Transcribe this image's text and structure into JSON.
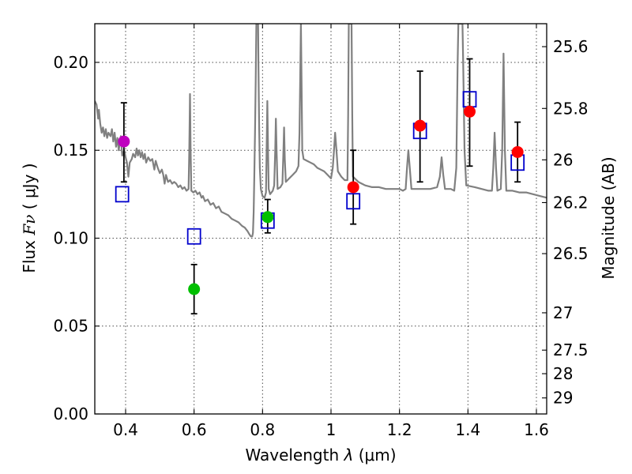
{
  "chart_data": {
    "type": "scatter",
    "xlabel": "Wavelength",
    "xlabel_symbol": "λ",
    "xlabel_unit": "(μm)",
    "ylabel": "Flux",
    "ylabel_symbol": "Fν",
    "ylabel_unit": "( μJy )",
    "y2label": "Magnitude (AB)",
    "xlim": [
      0.31,
      1.63
    ],
    "ylim": [
      0.0,
      0.222
    ],
    "grid": true,
    "x_ticks": [
      {
        "value": 0.4,
        "label": "0.4"
      },
      {
        "value": 0.6,
        "label": "0.6"
      },
      {
        "value": 0.8,
        "label": "0.8"
      },
      {
        "value": 1.0,
        "label": "1"
      },
      {
        "value": 1.2,
        "label": "1.2"
      },
      {
        "value": 1.4,
        "label": "1.4"
      },
      {
        "value": 1.6,
        "label": "1.6"
      }
    ],
    "y_ticks": [
      {
        "value": 0.0,
        "label": "0.00"
      },
      {
        "value": 0.05,
        "label": "0.05"
      },
      {
        "value": 0.1,
        "label": "0.10"
      },
      {
        "value": 0.15,
        "label": "0.15"
      },
      {
        "value": 0.2,
        "label": "0.20"
      }
    ],
    "y2_ticks": [
      {
        "mag": 25.6,
        "label": "25.6"
      },
      {
        "mag": 25.8,
        "label": "25.8"
      },
      {
        "mag": 26.0,
        "label": "26"
      },
      {
        "mag": 26.2,
        "label": "26.2"
      },
      {
        "mag": 26.5,
        "label": "26.5"
      },
      {
        "mag": 27.0,
        "label": "27"
      },
      {
        "mag": 27.5,
        "label": "27.5"
      },
      {
        "mag": 28.0,
        "label": "28"
      },
      {
        "mag": 29.0,
        "label": "29"
      }
    ],
    "observed_points": [
      {
        "x": 0.395,
        "y": 0.155,
        "err_low": 0.132,
        "err_high": 0.177,
        "color": "#bf00bf"
      },
      {
        "x": 0.6,
        "y": 0.071,
        "err_low": 0.057,
        "err_high": 0.085,
        "color": "#00bf00"
      },
      {
        "x": 0.815,
        "y": 0.112,
        "err_low": 0.103,
        "err_high": 0.122,
        "color": "#00bf00"
      },
      {
        "x": 1.065,
        "y": 0.129,
        "err_low": 0.108,
        "err_high": 0.15,
        "color": "#ff0000"
      },
      {
        "x": 1.26,
        "y": 0.164,
        "err_low": 0.132,
        "err_high": 0.195,
        "color": "#ff0000"
      },
      {
        "x": 1.405,
        "y": 0.172,
        "err_low": 0.141,
        "err_high": 0.202,
        "color": "#ff0000"
      },
      {
        "x": 1.545,
        "y": 0.149,
        "err_low": 0.132,
        "err_high": 0.166,
        "color": "#ff0000"
      }
    ],
    "model_photometry": [
      {
        "x": 0.39,
        "y": 0.125
      },
      {
        "x": 0.6,
        "y": 0.101
      },
      {
        "x": 0.815,
        "y": 0.11
      },
      {
        "x": 1.065,
        "y": 0.121
      },
      {
        "x": 1.26,
        "y": 0.161
      },
      {
        "x": 1.405,
        "y": 0.179
      },
      {
        "x": 1.545,
        "y": 0.143
      }
    ],
    "model_spectrum": {
      "color": "#808080",
      "points": [
        [
          0.31,
          0.178
        ],
        [
          0.315,
          0.176
        ],
        [
          0.32,
          0.168
        ],
        [
          0.322,
          0.173
        ],
        [
          0.326,
          0.165
        ],
        [
          0.33,
          0.16
        ],
        [
          0.334,
          0.163
        ],
        [
          0.338,
          0.158
        ],
        [
          0.342,
          0.162
        ],
        [
          0.346,
          0.157
        ],
        [
          0.35,
          0.16
        ],
        [
          0.356,
          0.158
        ],
        [
          0.36,
          0.162
        ],
        [
          0.364,
          0.155
        ],
        [
          0.368,
          0.16
        ],
        [
          0.372,
          0.152
        ],
        [
          0.376,
          0.157
        ],
        [
          0.38,
          0.15
        ],
        [
          0.386,
          0.158
        ],
        [
          0.39,
          0.147
        ],
        [
          0.396,
          0.15
        ],
        [
          0.4,
          0.146
        ],
        [
          0.404,
          0.143
        ],
        [
          0.408,
          0.135
        ],
        [
          0.412,
          0.143
        ],
        [
          0.418,
          0.145
        ],
        [
          0.422,
          0.148
        ],
        [
          0.428,
          0.146
        ],
        [
          0.432,
          0.151
        ],
        [
          0.436,
          0.147
        ],
        [
          0.44,
          0.15
        ],
        [
          0.444,
          0.146
        ],
        [
          0.448,
          0.149
        ],
        [
          0.452,
          0.145
        ],
        [
          0.456,
          0.148
        ],
        [
          0.46,
          0.143
        ],
        [
          0.466,
          0.146
        ],
        [
          0.472,
          0.144
        ],
        [
          0.478,
          0.145
        ],
        [
          0.484,
          0.139
        ],
        [
          0.488,
          0.144
        ],
        [
          0.494,
          0.14
        ],
        [
          0.5,
          0.137
        ],
        [
          0.506,
          0.139
        ],
        [
          0.51,
          0.136
        ],
        [
          0.514,
          0.131
        ],
        [
          0.518,
          0.136
        ],
        [
          0.524,
          0.132
        ],
        [
          0.53,
          0.133
        ],
        [
          0.536,
          0.131
        ],
        [
          0.542,
          0.132
        ],
        [
          0.548,
          0.131
        ],
        [
          0.554,
          0.129
        ],
        [
          0.56,
          0.13
        ],
        [
          0.566,
          0.128
        ],
        [
          0.572,
          0.129
        ],
        [
          0.578,
          0.127
        ],
        [
          0.584,
          0.128
        ],
        [
          0.586,
          0.15
        ],
        [
          0.588,
          0.182
        ],
        [
          0.59,
          0.15
        ],
        [
          0.592,
          0.127
        ],
        [
          0.598,
          0.126
        ],
        [
          0.604,
          0.127
        ],
        [
          0.61,
          0.125
        ],
        [
          0.616,
          0.126
        ],
        [
          0.622,
          0.123
        ],
        [
          0.626,
          0.124
        ],
        [
          0.632,
          0.121
        ],
        [
          0.64,
          0.122
        ],
        [
          0.648,
          0.119
        ],
        [
          0.656,
          0.12
        ],
        [
          0.664,
          0.117
        ],
        [
          0.672,
          0.118
        ],
        [
          0.68,
          0.115
        ],
        [
          0.69,
          0.114
        ],
        [
          0.7,
          0.113
        ],
        [
          0.71,
          0.111
        ],
        [
          0.72,
          0.11
        ],
        [
          0.73,
          0.109
        ],
        [
          0.74,
          0.107
        ],
        [
          0.748,
          0.106
        ],
        [
          0.756,
          0.104
        ],
        [
          0.762,
          0.102
        ],
        [
          0.766,
          0.101
        ],
        [
          0.77,
          0.101
        ],
        [
          0.772,
          0.103
        ],
        [
          0.774,
          0.115
        ],
        [
          0.776,
          0.135
        ],
        [
          0.778,
          0.16
        ],
        [
          0.78,
          0.19
        ],
        [
          0.782,
          0.222
        ],
        [
          0.787,
          0.222
        ],
        [
          0.788,
          0.2
        ],
        [
          0.79,
          0.165
        ],
        [
          0.792,
          0.14
        ],
        [
          0.795,
          0.128
        ],
        [
          0.8,
          0.124
        ],
        [
          0.806,
          0.123
        ],
        [
          0.81,
          0.126
        ],
        [
          0.812,
          0.15
        ],
        [
          0.814,
          0.178
        ],
        [
          0.816,
          0.15
        ],
        [
          0.818,
          0.128
        ],
        [
          0.822,
          0.125
        ],
        [
          0.83,
          0.127
        ],
        [
          0.834,
          0.13
        ],
        [
          0.837,
          0.15
        ],
        [
          0.839,
          0.168
        ],
        [
          0.841,
          0.15
        ],
        [
          0.844,
          0.128
        ],
        [
          0.852,
          0.129
        ],
        [
          0.858,
          0.131
        ],
        [
          0.861,
          0.15
        ],
        [
          0.863,
          0.163
        ],
        [
          0.865,
          0.145
        ],
        [
          0.868,
          0.132
        ],
        [
          0.878,
          0.134
        ],
        [
          0.888,
          0.136
        ],
        [
          0.898,
          0.138
        ],
        [
          0.905,
          0.141
        ],
        [
          0.908,
          0.16
        ],
        [
          0.91,
          0.19
        ],
        [
          0.912,
          0.222
        ],
        [
          0.914,
          0.19
        ],
        [
          0.916,
          0.15
        ],
        [
          0.92,
          0.145
        ],
        [
          0.93,
          0.144
        ],
        [
          0.94,
          0.143
        ],
        [
          0.95,
          0.142
        ],
        [
          0.96,
          0.14
        ],
        [
          0.97,
          0.139
        ],
        [
          0.98,
          0.138
        ],
        [
          0.99,
          0.136
        ],
        [
          1.0,
          0.134
        ],
        [
          1.005,
          0.14
        ],
        [
          1.008,
          0.148
        ],
        [
          1.012,
          0.16
        ],
        [
          1.016,
          0.15
        ],
        [
          1.02,
          0.138
        ],
        [
          1.03,
          0.135
        ],
        [
          1.04,
          0.133
        ],
        [
          1.048,
          0.133
        ],
        [
          1.05,
          0.17
        ],
        [
          1.052,
          0.222
        ],
        [
          1.06,
          0.222
        ],
        [
          1.062,
          0.17
        ],
        [
          1.064,
          0.135
        ],
        [
          1.08,
          0.132
        ],
        [
          1.09,
          0.131
        ],
        [
          1.1,
          0.13
        ],
        [
          1.12,
          0.129
        ],
        [
          1.14,
          0.129
        ],
        [
          1.16,
          0.128
        ],
        [
          1.18,
          0.128
        ],
        [
          1.2,
          0.128
        ],
        [
          1.21,
          0.127
        ],
        [
          1.218,
          0.128
        ],
        [
          1.222,
          0.14
        ],
        [
          1.226,
          0.15
        ],
        [
          1.23,
          0.14
        ],
        [
          1.235,
          0.128
        ],
        [
          1.25,
          0.128
        ],
        [
          1.27,
          0.128
        ],
        [
          1.29,
          0.128
        ],
        [
          1.31,
          0.129
        ],
        [
          1.318,
          0.135
        ],
        [
          1.323,
          0.146
        ],
        [
          1.328,
          0.136
        ],
        [
          1.333,
          0.128
        ],
        [
          1.35,
          0.128
        ],
        [
          1.36,
          0.127
        ],
        [
          1.366,
          0.14
        ],
        [
          1.37,
          0.2
        ],
        [
          1.372,
          0.222
        ],
        [
          1.384,
          0.222
        ],
        [
          1.386,
          0.2
        ],
        [
          1.39,
          0.15
        ],
        [
          1.395,
          0.13
        ],
        [
          1.42,
          0.129
        ],
        [
          1.44,
          0.128
        ],
        [
          1.46,
          0.127
        ],
        [
          1.47,
          0.127
        ],
        [
          1.474,
          0.14
        ],
        [
          1.478,
          0.16
        ],
        [
          1.482,
          0.14
        ],
        [
          1.486,
          0.127
        ],
        [
          1.496,
          0.128
        ],
        [
          1.5,
          0.15
        ],
        [
          1.504,
          0.205
        ],
        [
          1.508,
          0.15
        ],
        [
          1.512,
          0.127
        ],
        [
          1.53,
          0.127
        ],
        [
          1.55,
          0.126
        ],
        [
          1.57,
          0.126
        ],
        [
          1.59,
          0.125
        ],
        [
          1.61,
          0.124
        ],
        [
          1.63,
          0.123
        ]
      ]
    }
  }
}
